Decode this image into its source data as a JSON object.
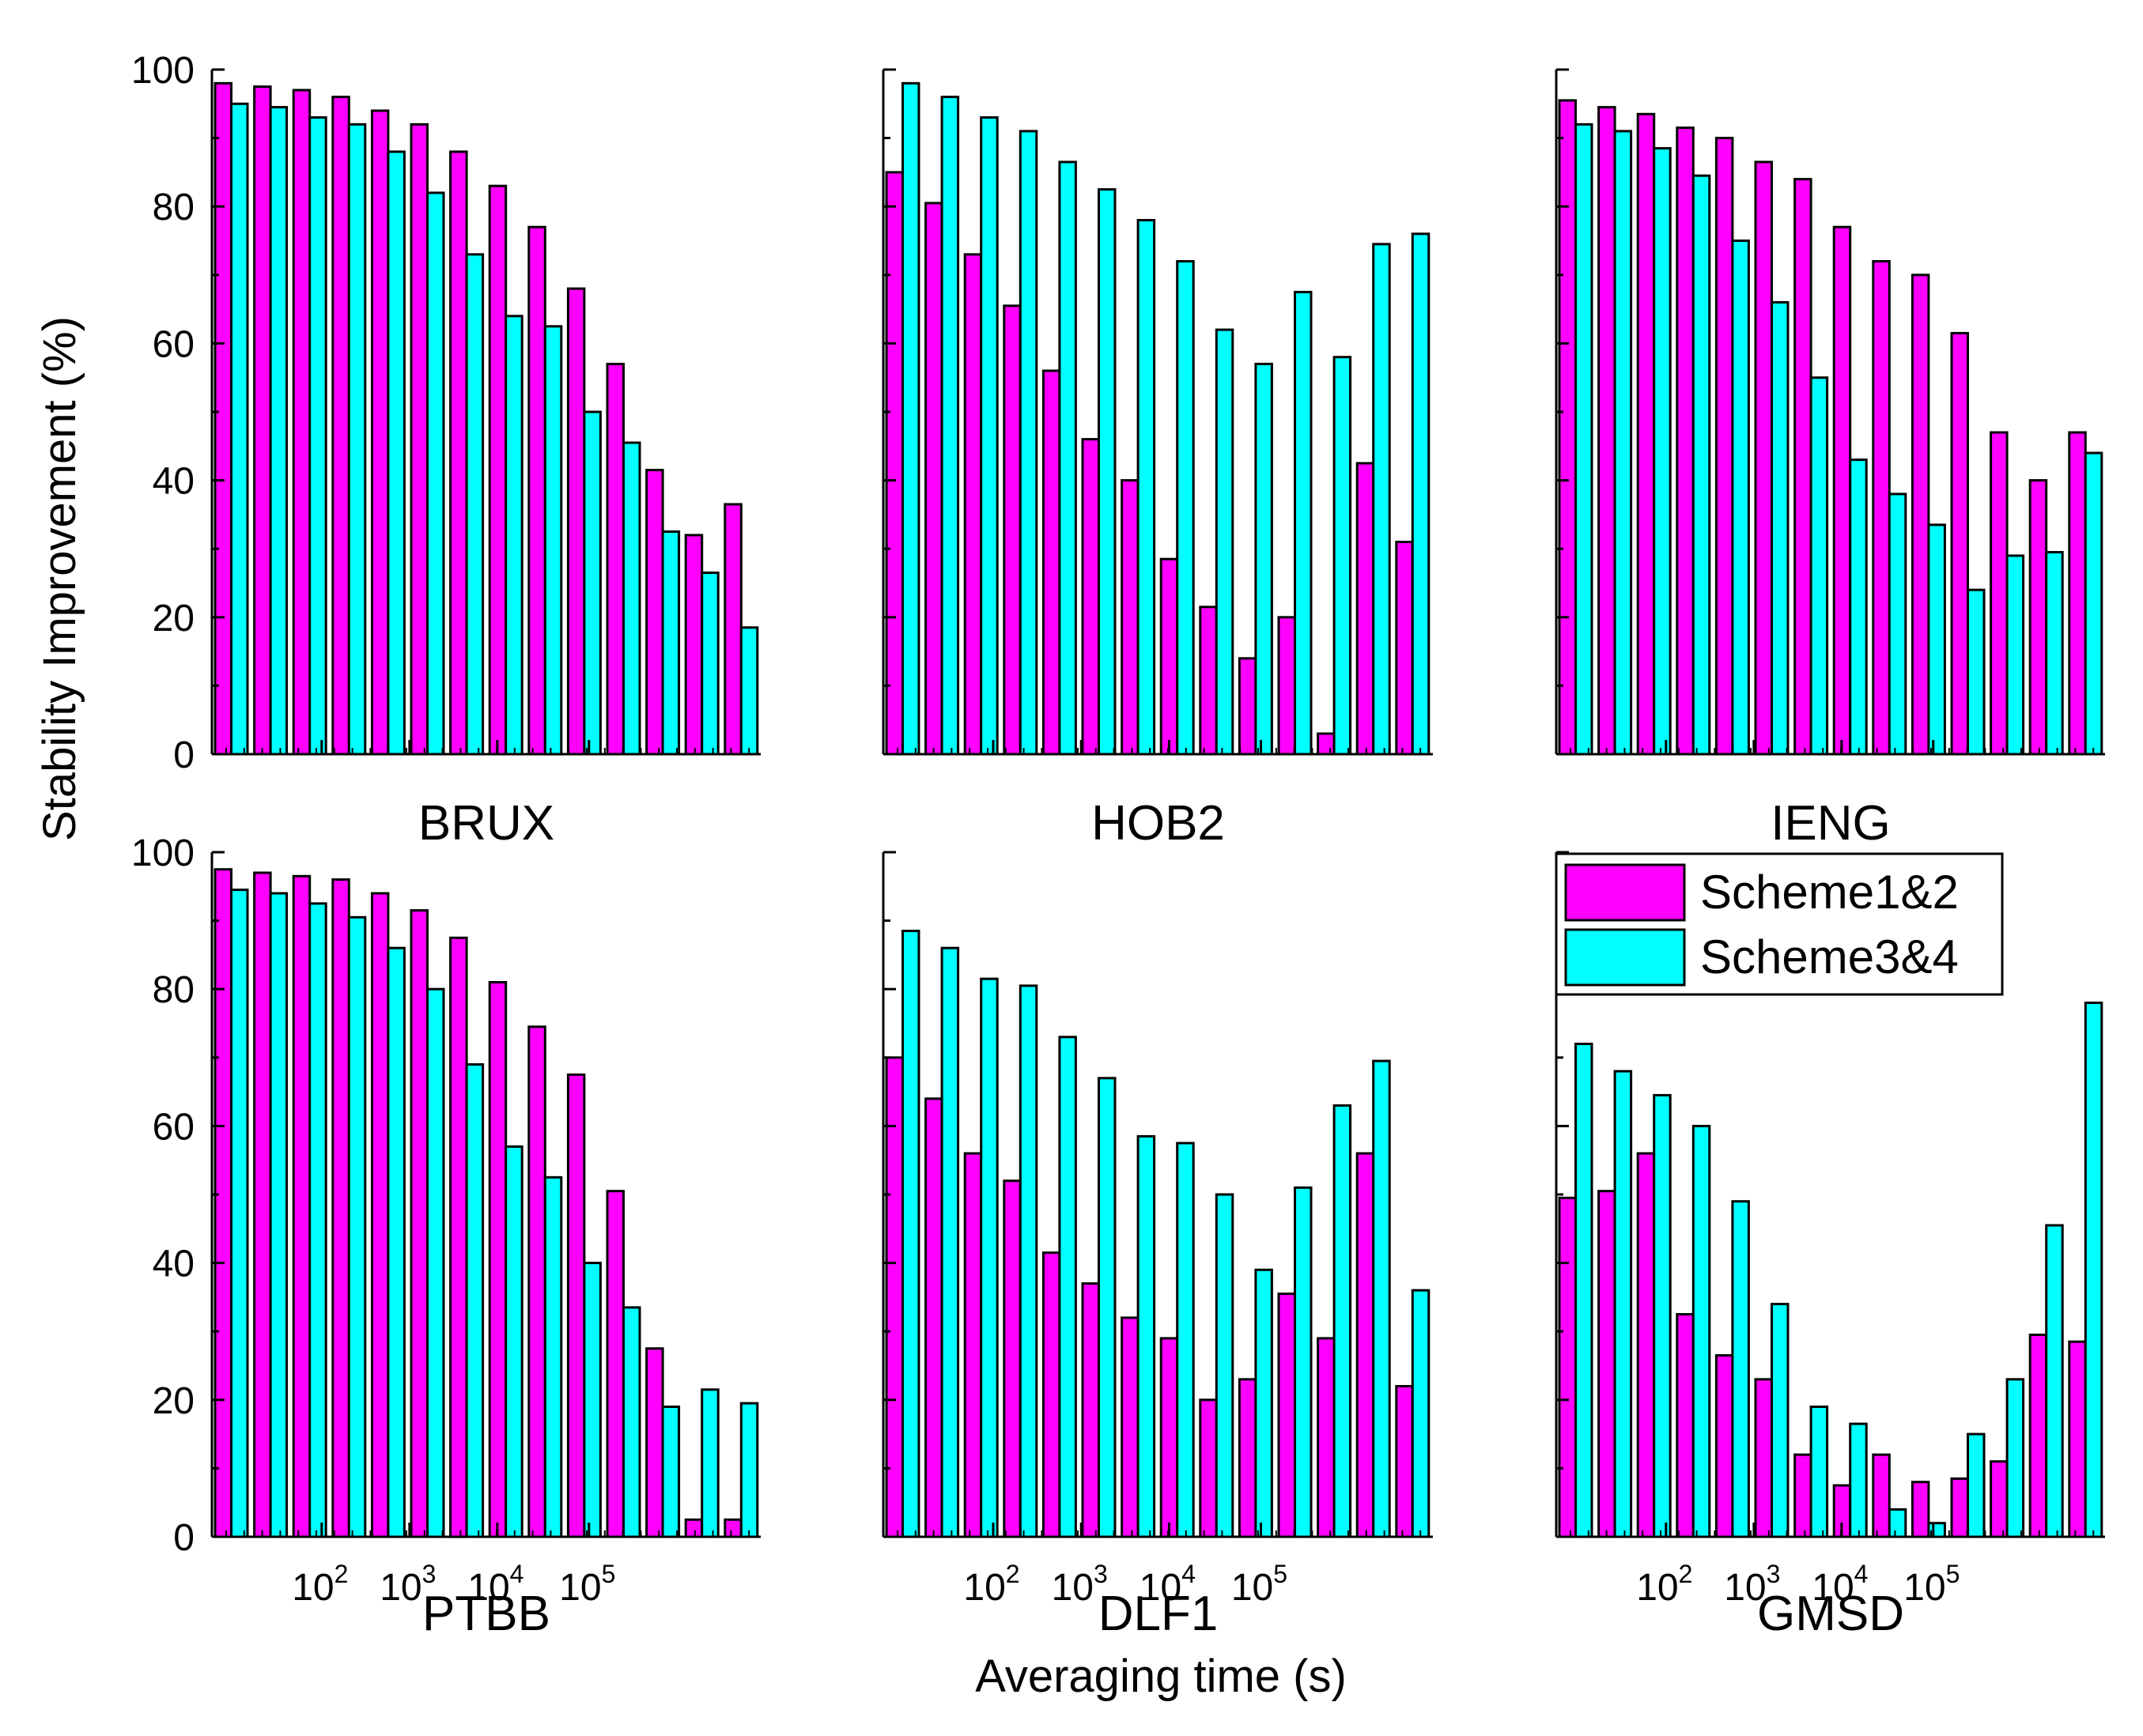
{
  "figure": {
    "ylabel": "Stability Improvement (%)",
    "xlabel": "Averaging time (s)",
    "legend": {
      "placement": "inside-right, between top-right and bottom-right panels",
      "entries": [
        {
          "label": "Scheme1&2",
          "color": "#ff00ff"
        },
        {
          "label": "Scheme3&4",
          "color": "#00ffff"
        }
      ]
    },
    "y_tick_labels": [
      "0",
      "20",
      "40",
      "60",
      "80",
      "100"
    ],
    "x_tick_labels": [
      {
        "base": "10",
        "exp": "2"
      },
      {
        "base": "10",
        "exp": "3"
      },
      {
        "base": "10",
        "exp": "4"
      },
      {
        "base": "10",
        "exp": "5"
      }
    ]
  },
  "chart_data": [
    {
      "type": "bar",
      "title": "BRUX",
      "ylim": [
        0,
        100
      ],
      "xscale": "log",
      "x_ticks": [
        100,
        1000,
        10000,
        100000
      ],
      "series": [
        {
          "name": "Scheme1&2",
          "color": "#ff00ff",
          "values": [
            98,
            97.5,
            97,
            96,
            94,
            92,
            88,
            83,
            77,
            68,
            57,
            41.5,
            32,
            36.5
          ]
        },
        {
          "name": "Scheme3&4",
          "color": "#00ffff",
          "values": [
            95,
            94.5,
            93,
            92,
            88,
            82,
            73,
            64,
            62.5,
            50,
            45.5,
            32.5,
            26.5,
            18.5
          ]
        }
      ]
    },
    {
      "type": "bar",
      "title": "HOB2",
      "ylim": [
        0,
        100
      ],
      "xscale": "log",
      "x_ticks": [
        100,
        1000,
        10000,
        100000
      ],
      "series": [
        {
          "name": "Scheme1&2",
          "color": "#ff00ff",
          "values": [
            85,
            80.5,
            73,
            65.5,
            56,
            46,
            40,
            28.5,
            21.5,
            14,
            20,
            3,
            42.5,
            31
          ]
        },
        {
          "name": "Scheme3&4",
          "color": "#00ffff",
          "values": [
            98,
            96,
            93,
            91,
            86.5,
            82.5,
            78,
            72,
            62,
            57,
            67.5,
            58,
            74.5,
            76
          ]
        }
      ]
    },
    {
      "type": "bar",
      "title": "IENG",
      "ylim": [
        0,
        100
      ],
      "xscale": "log",
      "x_ticks": [
        100,
        1000,
        10000,
        100000
      ],
      "series": [
        {
          "name": "Scheme1&2",
          "color": "#ff00ff",
          "values": [
            95.5,
            94.5,
            93.5,
            91.5,
            90,
            86.5,
            84,
            77,
            72,
            70,
            61.5,
            47,
            40,
            47
          ]
        },
        {
          "name": "Scheme3&4",
          "color": "#00ffff",
          "values": [
            92,
            91,
            88.5,
            84.5,
            75,
            66,
            55,
            43,
            38,
            33.5,
            24,
            29,
            29.5,
            44
          ]
        }
      ]
    },
    {
      "type": "bar",
      "title": "PTBB",
      "ylim": [
        0,
        100
      ],
      "xscale": "log",
      "x_ticks": [
        100,
        1000,
        10000,
        100000
      ],
      "series": [
        {
          "name": "Scheme1&2",
          "color": "#ff00ff",
          "values": [
            97.5,
            97,
            96.5,
            96,
            94,
            91.5,
            87.5,
            81,
            74.5,
            67.5,
            50.5,
            27.5,
            2.5,
            2.5
          ]
        },
        {
          "name": "Scheme3&4",
          "color": "#00ffff",
          "values": [
            94.5,
            94,
            92.5,
            90.5,
            86,
            80,
            69,
            57,
            52.5,
            40,
            33.5,
            19,
            21.5,
            19.5
          ]
        }
      ]
    },
    {
      "type": "bar",
      "title": "DLF1",
      "ylim": [
        0,
        100
      ],
      "xscale": "log",
      "x_ticks": [
        100,
        1000,
        10000,
        100000
      ],
      "series": [
        {
          "name": "Scheme1&2",
          "color": "#ff00ff",
          "values": [
            70,
            64,
            56,
            52,
            41.5,
            37,
            32,
            29,
            20,
            23,
            35.5,
            29,
            56,
            22
          ]
        },
        {
          "name": "Scheme3&4",
          "color": "#00ffff",
          "values": [
            88.5,
            86,
            81.5,
            80.5,
            73,
            67,
            58.5,
            57.5,
            50,
            39,
            51,
            63,
            69.5,
            36
          ]
        }
      ]
    },
    {
      "type": "bar",
      "title": "GMSD",
      "ylim": [
        0,
        100
      ],
      "xscale": "log",
      "x_ticks": [
        100,
        1000,
        10000,
        100000
      ],
      "series": [
        {
          "name": "Scheme1&2",
          "color": "#ff00ff",
          "values": [
            49.5,
            50.5,
            56,
            32.5,
            26.5,
            23,
            12,
            7.5,
            12,
            8,
            8.5,
            11,
            29.5,
            28.5
          ]
        },
        {
          "name": "Scheme3&4",
          "color": "#00ffff",
          "values": [
            72,
            68,
            64.5,
            60,
            49,
            34,
            19,
            16.5,
            4,
            2,
            15,
            23,
            45.5,
            78
          ]
        }
      ]
    }
  ]
}
